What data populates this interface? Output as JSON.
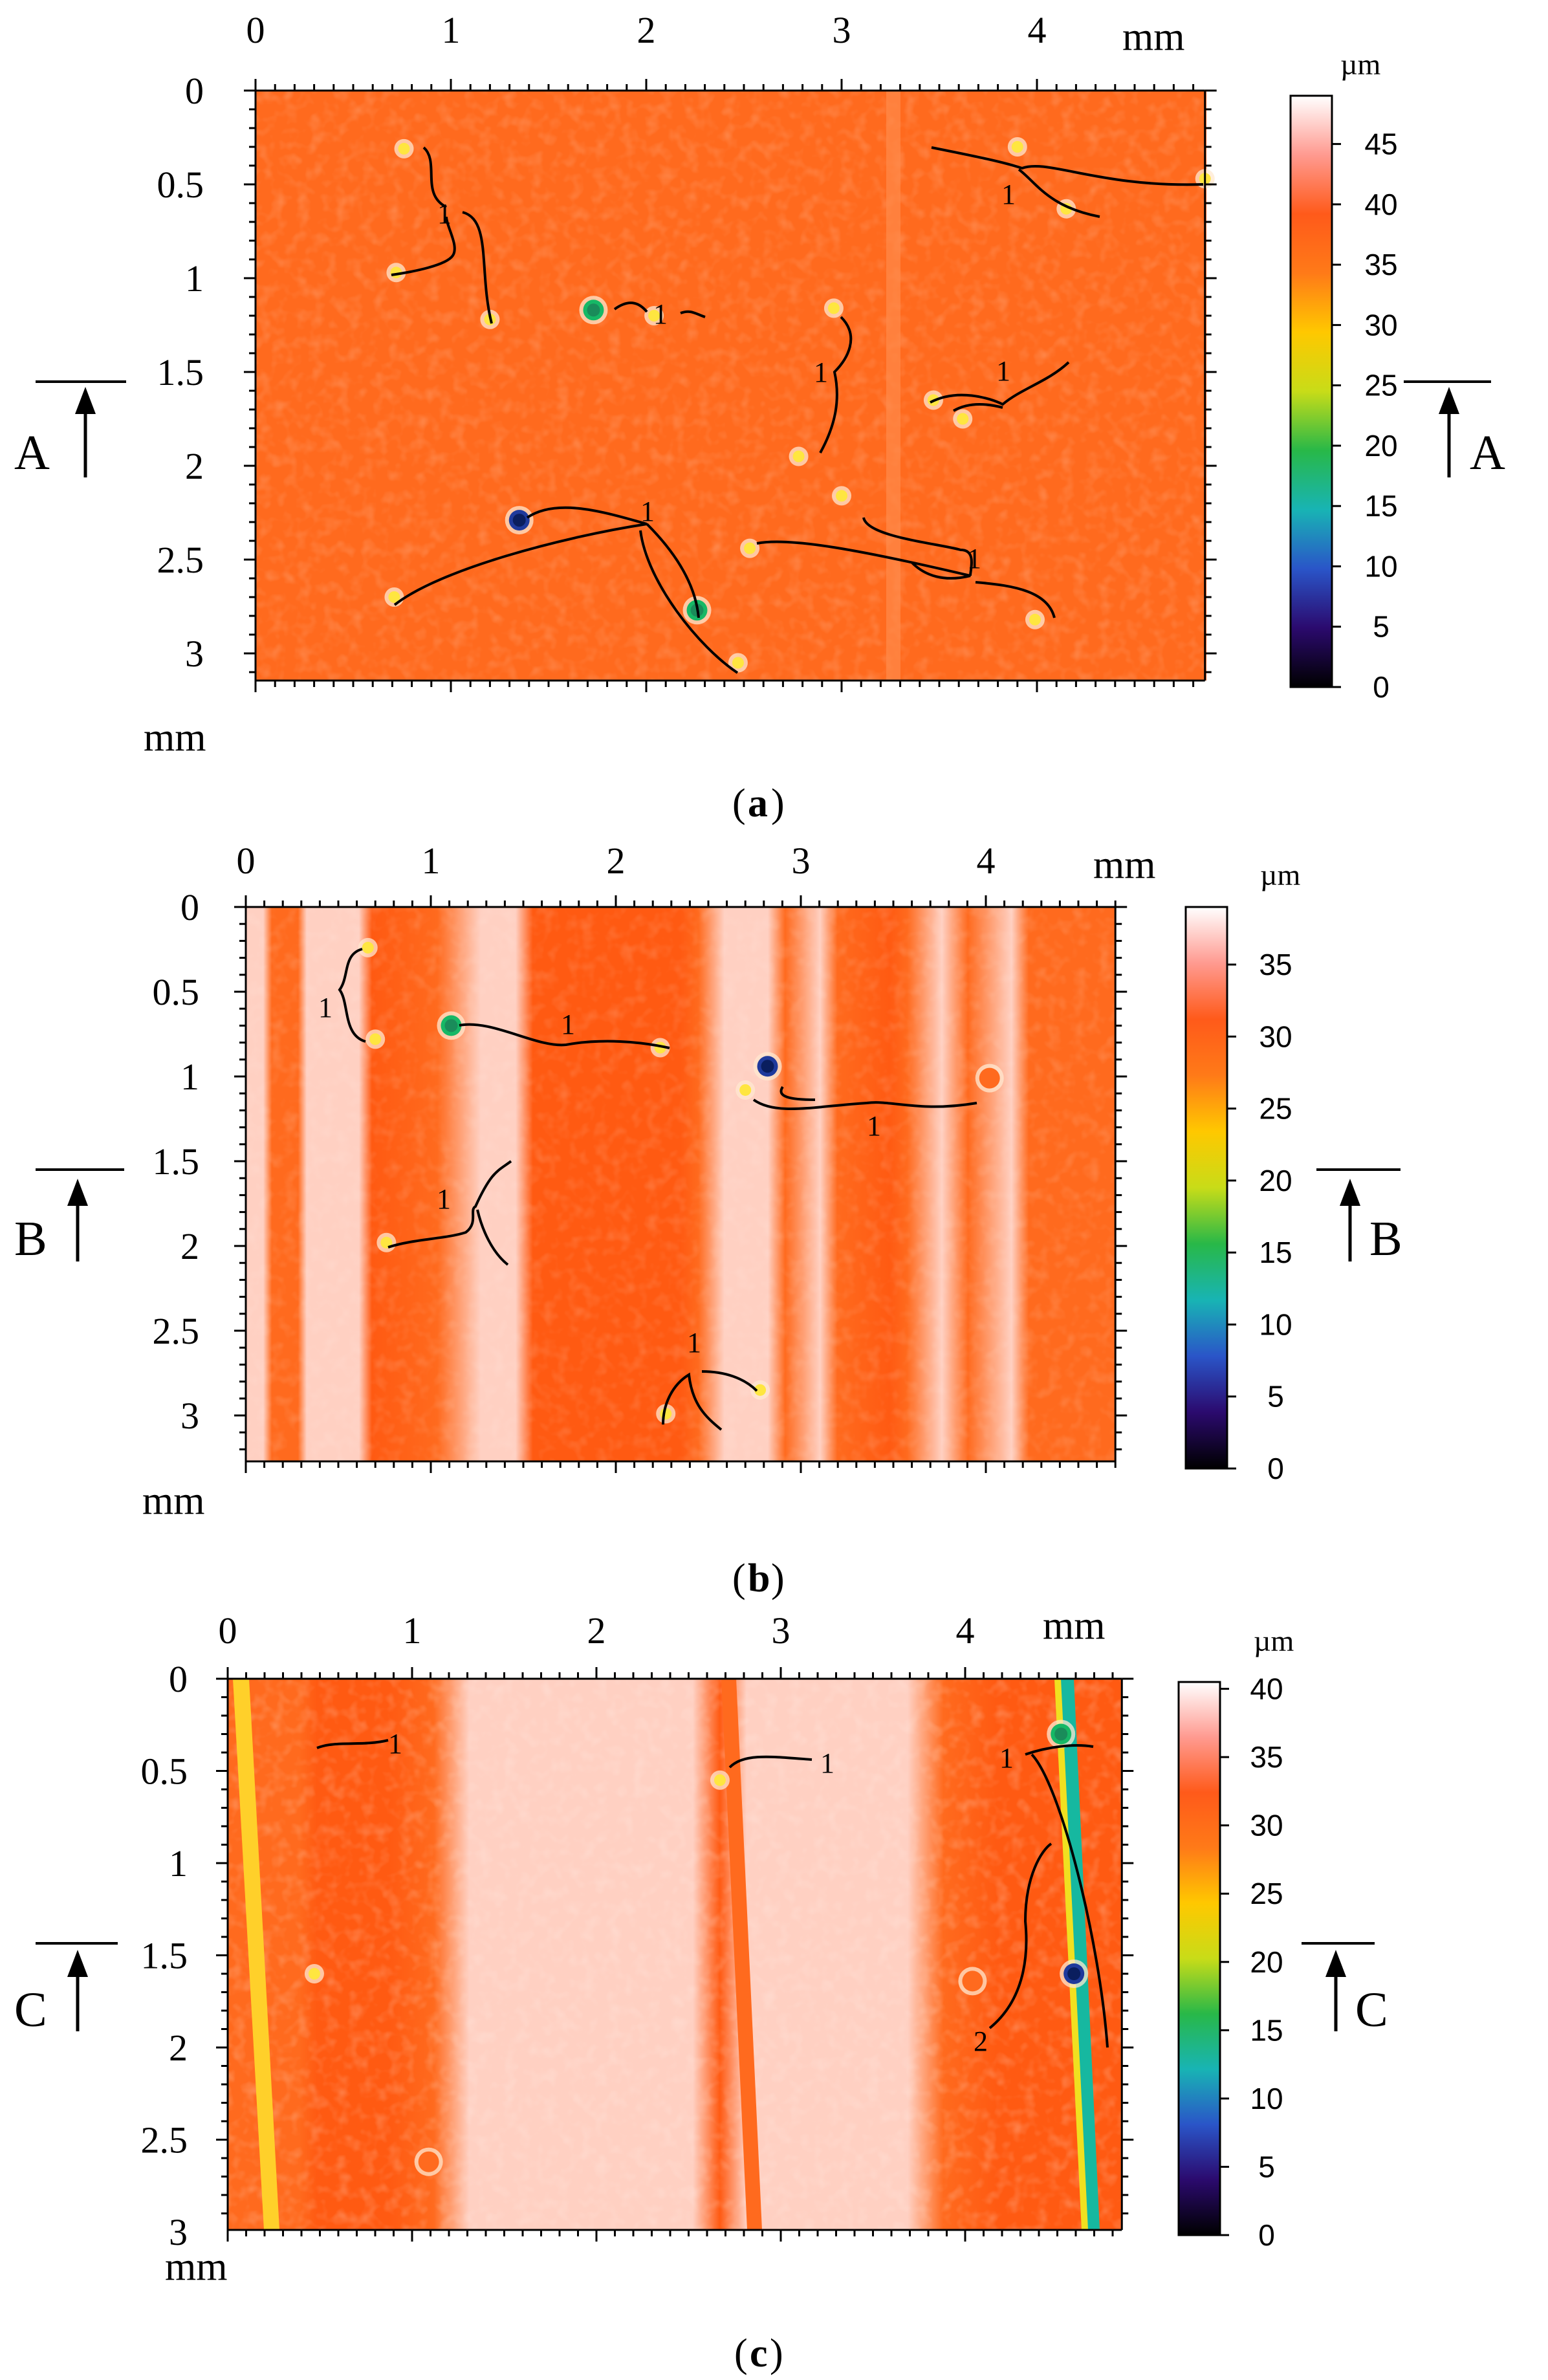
{
  "unit_mm": "mm",
  "unit_um": "µm",
  "palette": {
    "surface": "#ff6a1e",
    "light_band": "#ffd0c2",
    "dark_band": "#ff5a12",
    "pit_yellow": "#ffe640",
    "pit_green": "#16b866",
    "pit_blue": "#1f3a9c",
    "colorbar_stops": [
      "#000000",
      "#2b0a6e",
      "#2a55c8",
      "#18b4b4",
      "#28b848",
      "#c8dc18",
      "#ffc800",
      "#ff7a18",
      "#ff5a1a",
      "#ff9a90",
      "#ffffff"
    ]
  },
  "panels": [
    {
      "id": "a",
      "caption_letter": "a",
      "x_ticks": [
        "0",
        "1",
        "2",
        "3",
        "4"
      ],
      "y_ticks": [
        "0",
        "0.5",
        "1",
        "1.5",
        "2",
        "2.5",
        "3"
      ],
      "colorbar_ticks": [
        "0",
        "5",
        "10",
        "15",
        "20",
        "25",
        "30",
        "35",
        "40",
        "45"
      ],
      "colorbar_max": 49,
      "section_letter": "A",
      "section_y_mm": 1.5,
      "defects_mm": [
        [
          0.76,
          0.31,
          "y"
        ],
        [
          0.72,
          0.97,
          "y"
        ],
        [
          1.2,
          1.22,
          "y"
        ],
        [
          1.73,
          1.17,
          "g"
        ],
        [
          2.04,
          1.2,
          "y"
        ],
        [
          2.96,
          1.16,
          "y"
        ],
        [
          2.78,
          1.95,
          "y"
        ],
        [
          3.0,
          2.16,
          "y"
        ],
        [
          3.47,
          1.65,
          "y"
        ],
        [
          3.62,
          1.75,
          "y"
        ],
        [
          3.9,
          0.3,
          "y"
        ],
        [
          4.15,
          0.63,
          "y"
        ],
        [
          4.86,
          0.47,
          "y"
        ],
        [
          1.35,
          2.29,
          "b"
        ],
        [
          0.71,
          2.7,
          "y"
        ],
        [
          2.26,
          2.77,
          "g"
        ],
        [
          2.47,
          3.05,
          "y"
        ],
        [
          2.53,
          2.44,
          "y"
        ],
        [
          3.99,
          2.82,
          "y"
        ]
      ],
      "labels": [
        "1",
        "1",
        "1",
        "1",
        "1",
        "1",
        "1"
      ]
    },
    {
      "id": "b",
      "caption_letter": "b",
      "x_ticks": [
        "0",
        "1",
        "2",
        "3",
        "4"
      ],
      "y_ticks": [
        "0",
        "0.5",
        "1",
        "1.5",
        "2",
        "2.5",
        "3"
      ],
      "colorbar_ticks": [
        "0",
        "5",
        "10",
        "15",
        "20",
        "25",
        "30",
        "35"
      ],
      "colorbar_max": 39,
      "section_letter": "B",
      "section_y_mm": 1.5,
      "defects_mm": [
        [
          0.66,
          0.24,
          "y"
        ],
        [
          0.7,
          0.78,
          "y"
        ],
        [
          1.11,
          0.7,
          "g"
        ],
        [
          2.24,
          0.83,
          "y"
        ],
        [
          2.82,
          0.94,
          "b"
        ],
        [
          2.7,
          1.08,
          "y"
        ],
        [
          4.02,
          1.01,
          "o"
        ],
        [
          0.76,
          1.98,
          "y"
        ],
        [
          2.27,
          2.99,
          "y"
        ],
        [
          2.78,
          2.85,
          "y"
        ]
      ],
      "labels": [
        "1",
        "1",
        "1",
        "1",
        "1"
      ]
    },
    {
      "id": "c",
      "caption_letter": "c",
      "x_ticks": [
        "0",
        "1",
        "2",
        "3",
        "4"
      ],
      "y_ticks": [
        "0",
        "0.5",
        "1",
        "1.5",
        "2",
        "2.5",
        "3"
      ],
      "colorbar_ticks": [
        "0",
        "5",
        "10",
        "15",
        "20",
        "25",
        "30",
        "35",
        "40"
      ],
      "colorbar_max": 40.5,
      "section_letter": "C",
      "section_y_mm": 1.5,
      "defects_mm": [
        [
          2.67,
          0.55,
          "y"
        ],
        [
          0.47,
          1.6,
          "y"
        ],
        [
          4.52,
          0.3,
          "g"
        ],
        [
          4.59,
          1.6,
          "b"
        ],
        [
          4.04,
          1.64,
          "o"
        ],
        [
          1.09,
          2.62,
          "o"
        ]
      ],
      "labels": [
        "1",
        "1",
        "1",
        "2"
      ]
    }
  ]
}
